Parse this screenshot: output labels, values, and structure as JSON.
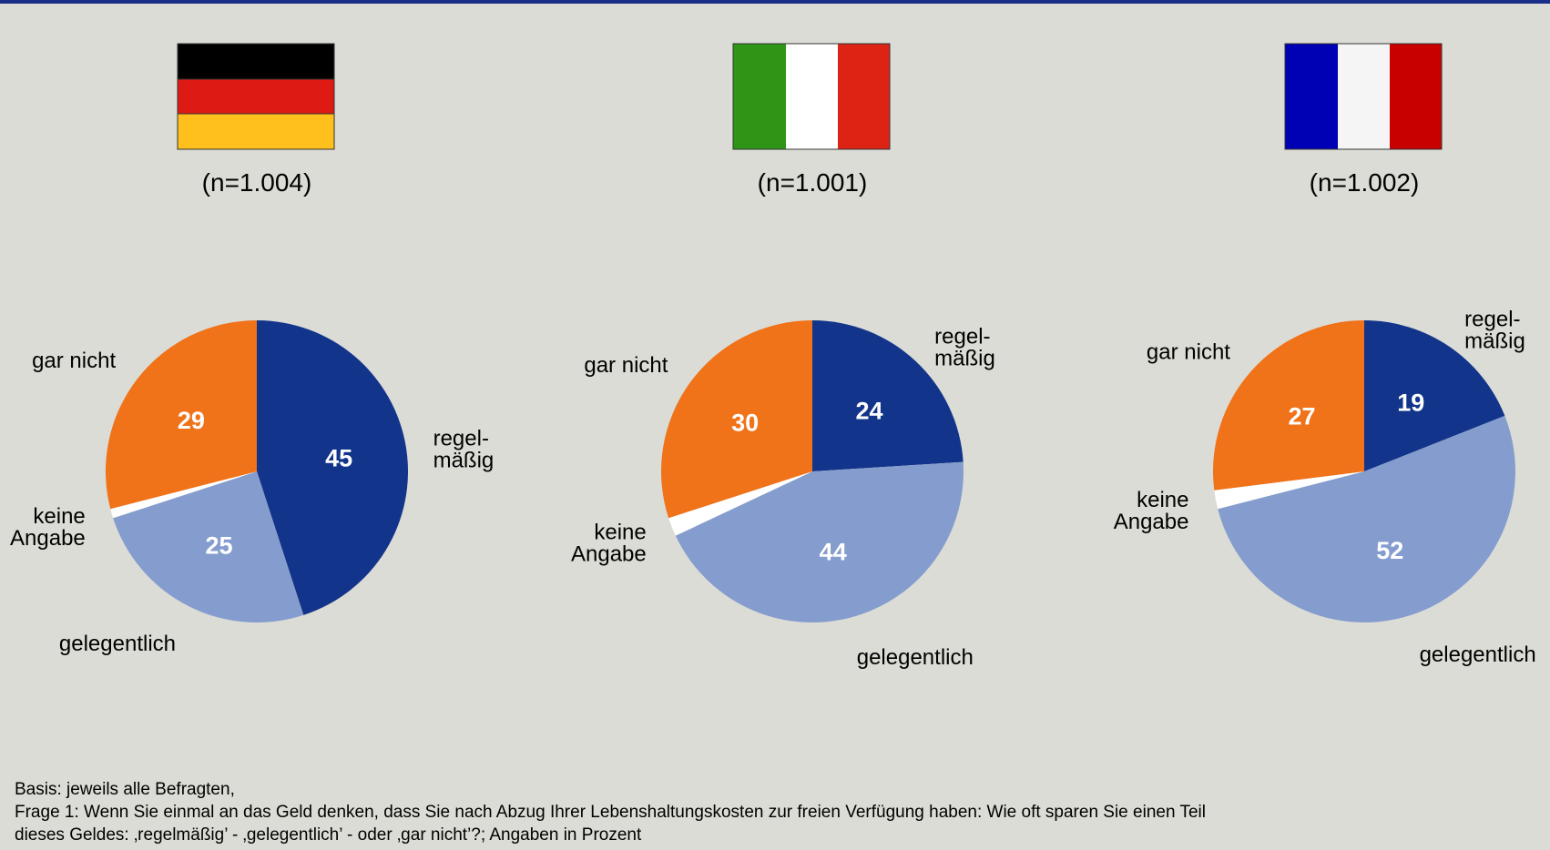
{
  "chart_data": [
    {
      "type": "pie",
      "subtitle": "(n=1.004)",
      "categories": [
        "regel-\nmäßig",
        "gelegentlich",
        "keine\nAngabe",
        "gar nicht"
      ],
      "values": [
        45,
        25,
        1,
        29
      ],
      "colors": [
        "#12348a",
        "#859dce",
        "#ffffff",
        "#f07219"
      ]
    },
    {
      "type": "pie",
      "subtitle": "(n=1.001)",
      "categories": [
        "regel-\nmäßig",
        "gelegentlich",
        "keine\nAngabe",
        "gar nicht"
      ],
      "values": [
        24,
        44,
        2,
        30
      ],
      "colors": [
        "#12348a",
        "#859dce",
        "#ffffff",
        "#f07219"
      ]
    },
    {
      "type": "pie",
      "subtitle": "(n=1.002)",
      "categories": [
        "regel-\nmäßig",
        "gelegentlich",
        "keine\nAngabe",
        "gar nicht"
      ],
      "values": [
        19,
        52,
        2,
        27
      ],
      "colors": [
        "#12348a",
        "#859dce",
        "#ffffff",
        "#f07219"
      ]
    }
  ],
  "footnote": [
    "Basis: jeweils alle Befragten,",
    "Frage 1: Wenn Sie einmal an das Geld denken, dass Sie nach Abzug Ihrer Lebenshaltungskosten zur freien Verfügung haben: Wie oft sparen Sie einen Teil",
    "dieses Geldes: ‚regelmäßig’ - ‚gelegentlich’ - oder ‚gar nicht’?; Angaben in Prozent"
  ]
}
